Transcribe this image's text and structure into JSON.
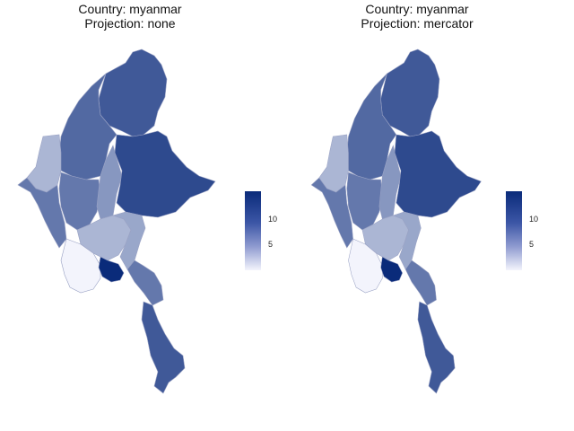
{
  "panels": [
    {
      "country_line": "Country: myanmar",
      "projection_line": "Projection: none"
    },
    {
      "country_line": "Country: myanmar",
      "projection_line": "Projection: mercator"
    }
  ],
  "legend": {
    "labels": [
      "10",
      "5"
    ],
    "ticks": [
      10,
      5
    ],
    "min": 1,
    "max": 14
  },
  "colors": {
    "low": "#f3f4fc",
    "high": "#0a2b7a"
  },
  "regions": [
    {
      "name": "kachin",
      "value": 11
    },
    {
      "name": "sagaing",
      "value": 10
    },
    {
      "name": "chin",
      "value": 5
    },
    {
      "name": "magway",
      "value": 9
    },
    {
      "name": "mandalay",
      "value": 7
    },
    {
      "name": "shan",
      "value": 12
    },
    {
      "name": "rakhine",
      "value": 9
    },
    {
      "name": "bago",
      "value": 5
    },
    {
      "name": "kayin",
      "value": 6
    },
    {
      "name": "mon",
      "value": 9
    },
    {
      "name": "ayeyarwady",
      "value": 1
    },
    {
      "name": "yangon",
      "value": 14
    },
    {
      "name": "tanintharyi",
      "value": 11
    }
  ]
}
